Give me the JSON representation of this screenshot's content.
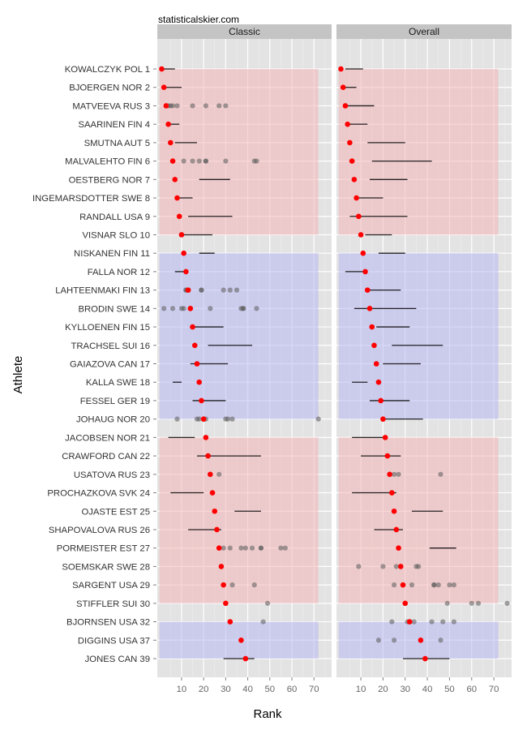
{
  "watermark": "statisticalskier.com",
  "chart_data": {
    "type": "scatter",
    "subtype": "faceted dot-and-range plot",
    "xlabel": "Rank",
    "ylabel": "Athlete",
    "xlim": [
      -1,
      78
    ],
    "xticks": [
      10,
      20,
      30,
      40,
      50,
      60,
      70
    ],
    "grid": true,
    "legend": "none",
    "facets": [
      "Classic",
      "Overall"
    ],
    "athletes": [
      "KOWALCZYK POL 1",
      "BJOERGEN NOR 2",
      "MATVEEVA RUS 3",
      "SAARINEN FIN 4",
      "SMUTNA AUT 5",
      "MALVALEHTO FIN 6",
      "OESTBERG NOR 7",
      "INGEMARSDOTTER SWE 8",
      "RANDALL USA 9",
      "VISNAR SLO 10",
      "NISKANEN FIN 11",
      "FALLA NOR 12",
      "LAHTEENMAKI FIN 13",
      "BRODIN SWE 14",
      "KYLLOENEN FIN 15",
      "TRACHSEL SUI 16",
      "GAIAZOVA CAN 17",
      "KALLA SWE 18",
      "FESSEL GER 19",
      "JOHAUG NOR 20",
      "JACOBSEN NOR 21",
      "CRAWFORD CAN 22",
      "USATOVA RUS 23",
      "PROCHAZKOVA SVK 24",
      "OJASTE EST 25",
      "SHAPOVALOVA RUS 26",
      "PORMEISTER EST 27",
      "SOEMSKAR SWE 28",
      "SARGENT USA 29",
      "STIFFLER SUI 30",
      "BJORNSEN USA 32",
      "DIGGINS USA 37",
      "JONES CAN 39"
    ],
    "bib_rank": [
      1,
      2,
      3,
      4,
      5,
      6,
      7,
      8,
      9,
      10,
      11,
      12,
      13,
      14,
      15,
      16,
      17,
      18,
      19,
      20,
      21,
      22,
      23,
      24,
      25,
      26,
      27,
      28,
      29,
      30,
      32,
      37,
      39
    ],
    "bands": [
      {
        "from_row": 1,
        "to_row": 10,
        "color": "#f4b6b8"
      },
      {
        "from_row": 11,
        "to_row": 20,
        "color": "#b8b8f2"
      },
      {
        "from_row": 21,
        "to_row": 30,
        "color": "#f4b6b8"
      },
      {
        "from_row": 31,
        "to_row": 33,
        "color": "#b8b8f2"
      }
    ],
    "colors": {
      "point": "#ff0000",
      "other": "#5a5a5a",
      "range": "#000000"
    },
    "panels": [
      {
        "name": "Classic",
        "ranges": [
          [
            2,
            7
          ],
          [
            3,
            10
          ],
          null,
          [
            5,
            9
          ],
          [
            7,
            17
          ],
          null,
          [
            18,
            32
          ],
          [
            8,
            15
          ],
          [
            13,
            33
          ],
          [
            10,
            24
          ],
          [
            18,
            25
          ],
          [
            7,
            12
          ],
          null,
          null,
          [
            15,
            29
          ],
          [
            22,
            42
          ],
          [
            14,
            31
          ],
          [
            6,
            10
          ],
          [
            15,
            30
          ],
          null,
          [
            4,
            16
          ],
          [
            17,
            46
          ],
          null,
          [
            5,
            20
          ],
          [
            34,
            46
          ],
          [
            13,
            28
          ],
          null,
          null,
          null,
          null,
          null,
          null,
          [
            29,
            43
          ]
        ],
        "others": [
          [],
          [],
          [
            4,
            5,
            6,
            8,
            15,
            21,
            27,
            30
          ],
          [],
          [],
          [
            11,
            15,
            18,
            21,
            21,
            30,
            43,
            44
          ],
          [],
          [],
          [],
          [],
          [],
          [],
          [
            12,
            12,
            19,
            19,
            29,
            32,
            35
          ],
          [
            2,
            6,
            10,
            11,
            23,
            37,
            38,
            38,
            44
          ],
          [],
          [],
          [],
          [],
          [],
          [
            8,
            17,
            18,
            21,
            30,
            31,
            33,
            72
          ],
          [],
          [],
          [
            27
          ],
          [],
          [],
          [],
          [
            29,
            32,
            37,
            39,
            42,
            46,
            46,
            55,
            57
          ],
          [],
          [
            33,
            43
          ],
          [
            49
          ],
          [
            47
          ],
          [],
          []
        ]
      },
      {
        "name": "Overall",
        "ranges": [
          [
            3,
            11
          ],
          [
            3,
            8
          ],
          [
            4,
            16
          ],
          [
            5,
            13
          ],
          [
            13,
            30
          ],
          [
            15,
            42
          ],
          [
            14,
            31
          ],
          [
            8,
            20
          ],
          [
            5,
            31
          ],
          [
            12,
            24
          ],
          [
            18,
            30
          ],
          [
            3,
            11
          ],
          [
            13,
            28
          ],
          [
            7,
            35
          ],
          [
            17,
            32
          ],
          [
            24,
            47
          ],
          [
            20,
            37
          ],
          [
            6,
            13
          ],
          [
            14,
            32
          ],
          [
            20,
            38
          ],
          [
            6,
            21
          ],
          [
            10,
            28
          ],
          null,
          [
            6,
            26
          ],
          [
            33,
            47
          ],
          [
            16,
            29
          ],
          [
            41,
            53
          ],
          null,
          null,
          null,
          null,
          null,
          [
            29,
            50
          ]
        ],
        "others": [
          [],
          [],
          [],
          [],
          [],
          [],
          [],
          [],
          [],
          [],
          [],
          [],
          [],
          [],
          [],
          [],
          [],
          [],
          [],
          [],
          [],
          [],
          [
            25,
            27,
            46
          ],
          [],
          [],
          [],
          [],
          [
            9,
            20,
            26,
            35,
            36
          ],
          [
            25,
            33,
            43,
            43,
            45,
            50,
            52
          ],
          [
            49,
            60,
            63,
            76
          ],
          [
            24,
            31,
            34,
            42,
            47,
            52
          ],
          [
            18,
            25,
            46
          ],
          []
        ]
      }
    ]
  }
}
